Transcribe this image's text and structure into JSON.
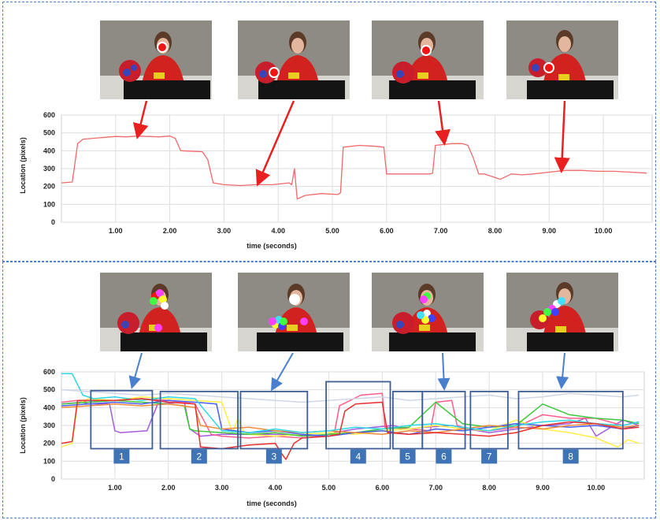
{
  "chart_data": [
    {
      "type": "line",
      "title": "",
      "xlabel": "time (seconds)",
      "ylabel": "Location (pixels)",
      "ylim": [
        0,
        600
      ],
      "xlim": [
        0,
        10.9
      ],
      "y_ticks": [
        "0",
        "100",
        "200",
        "300",
        "400",
        "500",
        "600"
      ],
      "x_ticks": [
        "1.00",
        "2.00",
        "3.00",
        "4.00",
        "5.00",
        "6.00",
        "7.00",
        "8.00",
        "9.00",
        "10.00"
      ],
      "grid": true,
      "series": [
        {
          "color": "#f06a6a",
          "x": [
            0,
            0.2,
            0.3,
            0.4,
            0.6,
            0.8,
            1.0,
            1.2,
            1.4,
            1.6,
            1.8,
            2.0,
            2.1,
            2.2,
            2.6,
            2.7,
            2.8,
            3.0,
            3.3,
            3.6,
            3.9,
            4.2,
            4.25,
            4.3,
            4.35,
            4.5,
            4.8,
            5.1,
            5.15,
            5.2,
            5.5,
            5.8,
            5.95,
            6.0,
            6.3,
            6.6,
            6.8,
            6.85,
            6.9,
            7.2,
            7.4,
            7.5,
            7.6,
            7.7,
            7.8,
            8.0,
            8.1,
            8.3,
            8.5,
            8.7,
            9.0,
            9.3,
            9.6,
            9.9,
            10.2,
            10.5,
            10.8
          ],
          "y": [
            220,
            225,
            440,
            465,
            470,
            475,
            480,
            478,
            482,
            480,
            478,
            482,
            470,
            400,
            395,
            350,
            220,
            210,
            205,
            210,
            210,
            220,
            210,
            300,
            130,
            150,
            160,
            155,
            165,
            420,
            430,
            425,
            420,
            270,
            270,
            270,
            270,
            275,
            430,
            440,
            440,
            430,
            360,
            270,
            270,
            250,
            240,
            270,
            265,
            270,
            280,
            290,
            290,
            285,
            285,
            280,
            275
          ]
        }
      ],
      "annotations": []
    },
    {
      "type": "line",
      "title": "",
      "xlabel": "time (seconds)",
      "ylabel": "Location (pixels)",
      "ylim": [
        0,
        600
      ],
      "xlim": [
        0,
        10.9
      ],
      "y_ticks": [
        "0",
        "100",
        "200",
        "300",
        "400",
        "500",
        "600"
      ],
      "x_ticks": [
        "1.00",
        "2.00",
        "3.00",
        "4.00",
        "5.00",
        "6.00",
        "7.00",
        "8.00",
        "9.00",
        "10.00"
      ],
      "grid": true,
      "series": [
        {
          "color": "#a45de0",
          "x": [
            0,
            0.4,
            0.5,
            0.9,
            1.0,
            1.1,
            1.6,
            1.8,
            2.3,
            2.4,
            2.6,
            3.0,
            4.0,
            4.9,
            5.1,
            5.5,
            6.2,
            6.5,
            6.8,
            7.3,
            7.6,
            8.0,
            8.5,
            9.0,
            9.5,
            9.8,
            10.0,
            10.5,
            10.8
          ],
          "y": [
            420,
            430,
            420,
            420,
            270,
            260,
            270,
            420,
            430,
            280,
            240,
            250,
            250,
            240,
            260,
            280,
            300,
            280,
            290,
            300,
            280,
            260,
            280,
            300,
            310,
            340,
            240,
            330,
            300
          ]
        },
        {
          "color": "#ff5e8a",
          "x": [
            0,
            0.3,
            0.5,
            1.0,
            1.5,
            2.0,
            2.5,
            2.8,
            3.0,
            3.5,
            4.0,
            4.5,
            5.0,
            5.1,
            5.2,
            5.6,
            6.0,
            6.05,
            6.5,
            6.9,
            7.0,
            7.3,
            7.4,
            7.6,
            8.0,
            8.5,
            9.0,
            9.5,
            10.0,
            10.5,
            10.8
          ],
          "y": [
            430,
            440,
            430,
            440,
            450,
            440,
            420,
            250,
            240,
            230,
            240,
            230,
            240,
            250,
            410,
            470,
            480,
            290,
            280,
            270,
            430,
            440,
            300,
            280,
            270,
            290,
            360,
            340,
            340,
            300,
            320
          ]
        },
        {
          "color": "#ffee44",
          "x": [
            0,
            0.2,
            0.3,
            0.5,
            1.0,
            1.5,
            2.0,
            2.5,
            3.0,
            3.2,
            3.3,
            3.4,
            3.5,
            4.0,
            4.5,
            5.0,
            5.5,
            6.0,
            6.5,
            7.0,
            7.5,
            8.0,
            8.5,
            9.0,
            9.5,
            10.0,
            10.4,
            10.6,
            10.8
          ],
          "y": [
            180,
            200,
            420,
            450,
            440,
            460,
            450,
            440,
            430,
            260,
            340,
            270,
            250,
            240,
            250,
            260,
            250,
            270,
            280,
            300,
            280,
            270,
            330,
            280,
            260,
            230,
            180,
            220,
            200
          ]
        },
        {
          "color": "#3ec83e",
          "x": [
            0,
            0.5,
            1.0,
            1.5,
            2.0,
            2.3,
            2.4,
            2.5,
            3.0,
            3.5,
            4.0,
            4.5,
            5.0,
            5.5,
            6.0,
            6.5,
            7.0,
            7.5,
            8.0,
            8.5,
            9.0,
            9.5,
            10.0,
            10.5,
            10.8
          ],
          "y": [
            420,
            430,
            440,
            430,
            420,
            410,
            280,
            270,
            260,
            250,
            260,
            240,
            250,
            260,
            280,
            290,
            430,
            310,
            290,
            300,
            420,
            360,
            340,
            330,
            310
          ]
        },
        {
          "color": "#4a5ef0",
          "x": [
            0,
            0.5,
            1.0,
            1.5,
            2.0,
            2.5,
            2.9,
            3.0,
            3.5,
            4.0,
            4.5,
            5.0,
            5.5,
            6.0,
            6.5,
            7.0,
            7.5,
            8.0,
            8.5,
            9.0,
            9.5,
            10.0,
            10.5,
            10.8
          ],
          "y": [
            410,
            420,
            430,
            420,
            440,
            430,
            420,
            280,
            260,
            270,
            250,
            240,
            260,
            270,
            250,
            280,
            270,
            290,
            310,
            300,
            290,
            300,
            280,
            300
          ]
        },
        {
          "color": "#f28a3a",
          "x": [
            0,
            0.5,
            1.0,
            1.5,
            2.0,
            2.5,
            2.6,
            3.0,
            3.5,
            4.0,
            4.5,
            5.0,
            5.5,
            6.0,
            6.5,
            7.0,
            7.5,
            8.0,
            8.5,
            9.0,
            9.5,
            10.0,
            10.5,
            10.8
          ],
          "y": [
            400,
            410,
            420,
            410,
            420,
            400,
            300,
            280,
            290,
            270,
            260,
            270,
            260,
            250,
            270,
            260,
            280,
            300,
            290,
            280,
            300,
            310,
            290,
            300
          ]
        },
        {
          "color": "#2ed6e6",
          "x": [
            0,
            0.2,
            0.4,
            0.6,
            1.0,
            1.5,
            2.0,
            2.5,
            3.0,
            3.5,
            4.0,
            4.5,
            5.0,
            5.5,
            6.0,
            6.5,
            7.0,
            7.5,
            8.0,
            8.5,
            9.0,
            9.5,
            10.0,
            10.5,
            10.8
          ],
          "y": [
            590,
            590,
            470,
            450,
            460,
            440,
            460,
            450,
            270,
            260,
            280,
            260,
            270,
            290,
            280,
            300,
            310,
            290,
            270,
            300,
            320,
            330,
            310,
            300,
            320
          ]
        },
        {
          "color": "#cfd6e6",
          "x": [
            0,
            0.5,
            1.0,
            1.5,
            2.0,
            2.5,
            3.0,
            3.5,
            4.0,
            4.5,
            5.0,
            5.5,
            6.0,
            6.5,
            7.0,
            7.5,
            8.0,
            8.5,
            9.0,
            9.5,
            10.0,
            10.5,
            10.8
          ],
          "y": [
            500,
            490,
            480,
            470,
            480,
            470,
            460,
            450,
            440,
            430,
            440,
            450,
            460,
            440,
            450,
            460,
            470,
            450,
            460,
            480,
            470,
            460,
            470
          ]
        },
        {
          "color": "#e92f2f",
          "x": [
            0,
            0.2,
            0.3,
            1.0,
            1.5,
            2.0,
            2.5,
            2.6,
            3.0,
            3.5,
            4.0,
            4.1,
            4.2,
            4.35,
            4.5,
            5.0,
            5.2,
            5.3,
            5.5,
            6.0,
            6.1,
            6.5,
            7.0,
            7.5,
            8.0,
            8.5,
            9.0,
            9.5,
            10.0,
            10.5,
            10.8
          ],
          "y": [
            200,
            210,
            440,
            440,
            450,
            430,
            420,
            180,
            170,
            190,
            200,
            150,
            110,
            200,
            230,
            240,
            250,
            380,
            420,
            430,
            260,
            250,
            260,
            250,
            240,
            260,
            300,
            320,
            310,
            280,
            290
          ]
        }
      ],
      "annotations": [
        "1",
        "2",
        "3",
        "4",
        "5",
        "6",
        "7",
        "8"
      ]
    }
  ]
}
